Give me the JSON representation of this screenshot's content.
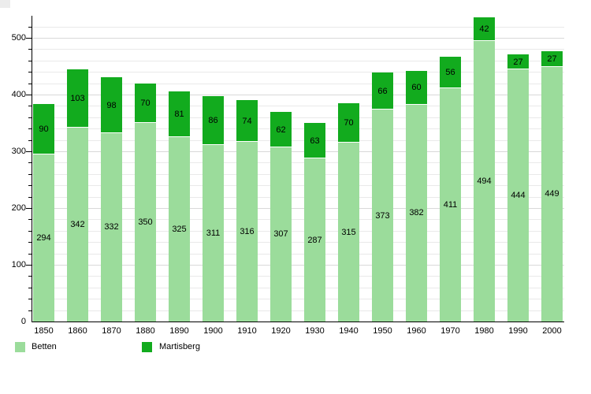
{
  "chart_data": {
    "type": "bar",
    "stacked": true,
    "title": "",
    "xlabel": "",
    "ylabel": "",
    "categories": [
      "1850",
      "1860",
      "1870",
      "1880",
      "1890",
      "1900",
      "1910",
      "1920",
      "1930",
      "1940",
      "1950",
      "1960",
      "1970",
      "1980",
      "1990",
      "2000"
    ],
    "series": [
      {
        "name": "Betten",
        "color": "#9bdc9b",
        "values": [
          294,
          342,
          332,
          350,
          325,
          311,
          316,
          307,
          287,
          315,
          373,
          382,
          411,
          494,
          444,
          449
        ]
      },
      {
        "name": "Martisberg",
        "color": "#12ab1e",
        "values": [
          90,
          103,
          98,
          70,
          81,
          86,
          74,
          62,
          63,
          70,
          66,
          60,
          56,
          42,
          27,
          27
        ]
      }
    ],
    "ylim": [
      0,
      540
    ],
    "y_major_ticks": [
      0,
      100,
      200,
      300,
      400,
      500
    ],
    "y_minor_step": 20,
    "grid": true,
    "data_labels": true,
    "legend_position": "bottom"
  },
  "legend": {
    "betten_label": "Betten",
    "martisberg_label": "Martisberg"
  }
}
